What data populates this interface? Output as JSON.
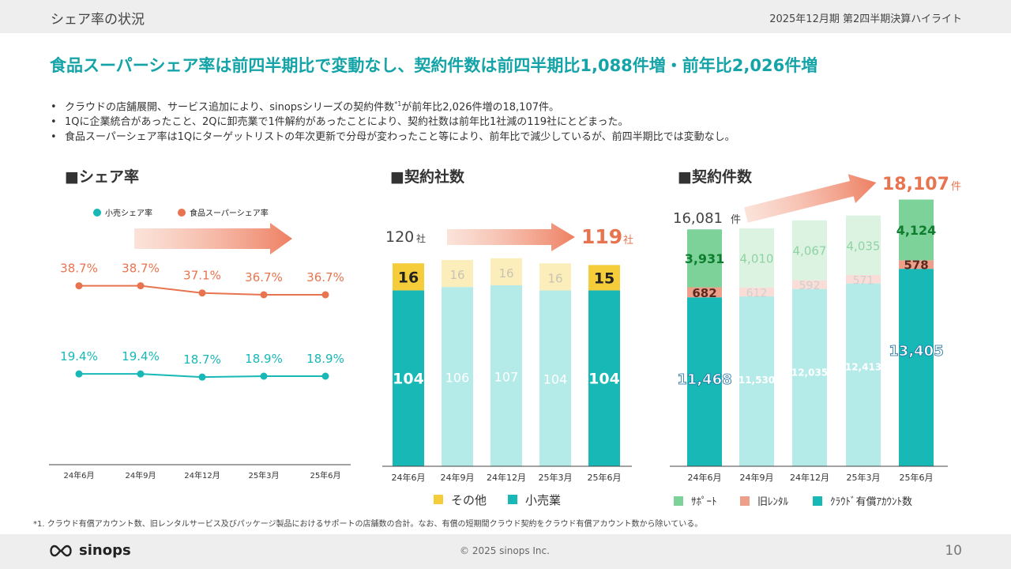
{
  "header": {
    "section": "シェア率の状況",
    "period": "2025年12月期 第2四半期決算ハイライト"
  },
  "headline": "食品スーパーシェア率は前四半期比で変動なし、契約件数は前四半期比1,088件増・前年比2,026件増",
  "bullets": [
    {
      "pre": "クラウドの店舗展開、サービス追加により、sinopsシリーズの契約件数",
      "sup": "*1",
      "post": "が前年比2,026件増の18,107件。"
    },
    {
      "pre": "1Qに企業統合があったこと、2Qに卸売業で1件解約があったことにより、契約社数は前年比1社減の119社にとどまった。",
      "sup": "",
      "post": ""
    },
    {
      "pre": "食品スーパーシェア率は1Qにターゲットリストの年次更新で分母が変わったこと等により、前年比で減少しているが、前四半期比では変動なし。",
      "sup": "",
      "post": ""
    }
  ],
  "panels": {
    "share": "■シェア率",
    "companies": "■契約社数",
    "contracts": "■契約件数"
  },
  "colors": {
    "teal": "#17b8b6",
    "orange": "#e8744f",
    "pale_teal": "#b4eae8",
    "yellow": "#f5cd3a",
    "pale_yellow": "#fbeebb",
    "green": "#7dd29a",
    "pale_green": "#dcf3e2",
    "salmon": "#ee9f89",
    "pale_salmon": "#f9ddd6",
    "headline": "#14a4a8"
  },
  "chart_data": [
    {
      "type": "line",
      "categories": [
        "24年6月",
        "24年9月",
        "24年12月",
        "25年3月",
        "25年6月"
      ],
      "series": [
        {
          "name": "小売シェア率",
          "values": [
            19.4,
            19.4,
            18.7,
            18.9,
            18.9
          ],
          "labels": [
            "19.4%",
            "19.4%",
            "18.7%",
            "18.9%",
            "18.9%"
          ],
          "color": "#17b8b6"
        },
        {
          "name": "食品スーパーシェア率",
          "values": [
            38.7,
            38.7,
            37.1,
            36.7,
            36.7
          ],
          "labels": [
            "38.7%",
            "38.7%",
            "37.1%",
            "36.7%",
            "36.7%"
          ],
          "color": "#e8744f"
        }
      ]
    },
    {
      "type": "bar",
      "stacked": true,
      "categories": [
        "24年6月",
        "24年9月",
        "24年12月",
        "25年3月",
        "25年6月"
      ],
      "series": [
        {
          "name": "小売業",
          "values": [
            104,
            106,
            107,
            104,
            104
          ]
        },
        {
          "name": "その他",
          "values": [
            16,
            16,
            16,
            16,
            15
          ]
        }
      ],
      "start_label": "120",
      "end_label": "119",
      "unit": "社",
      "legend": [
        "その他",
        "小売業"
      ]
    },
    {
      "type": "bar",
      "stacked": true,
      "categories": [
        "24年6月",
        "24年9月",
        "24年12月",
        "25年3月",
        "25年6月"
      ],
      "series": [
        {
          "name": "ｸﾗｳﾄﾞ有償ｱｶｳﾝﾄ数",
          "values": [
            11468,
            11530,
            12035,
            12413,
            13405
          ],
          "labels": [
            "11,468",
            "11,530",
            "12,035",
            "12,413",
            "13,405"
          ]
        },
        {
          "name": "旧ﾚﾝﾀﾙ",
          "values": [
            682,
            612,
            592,
            571,
            578
          ],
          "labels": [
            "682",
            "612",
            "592",
            "571",
            "578"
          ]
        },
        {
          "name": "ｻﾎﾟｰﾄ",
          "values": [
            3931,
            4010,
            4067,
            4035,
            4124
          ],
          "labels": [
            "3,931",
            "4,010",
            "4,067",
            "4,035",
            "4,124"
          ]
        }
      ],
      "start_label": "16,081",
      "start_unit": "件",
      "end_label": "18,107",
      "end_unit": "件",
      "legend": [
        "ｻﾎﾟｰﾄ",
        "旧ﾚﾝﾀﾙ",
        "ｸﾗｳﾄﾞ有償ｱｶｳﾝﾄ数"
      ]
    }
  ],
  "footnote": "*1. クラウド有償アカウント数、旧レンタルサービス及びパッケージ製品におけるサポートの店舗数の合計。なお、有償の短期間クラウド契約をクラウド有償アカウント数から除いている。",
  "footer": {
    "logo": "sinops",
    "copyright": "© 2025 sinops Inc.",
    "page": "10"
  }
}
